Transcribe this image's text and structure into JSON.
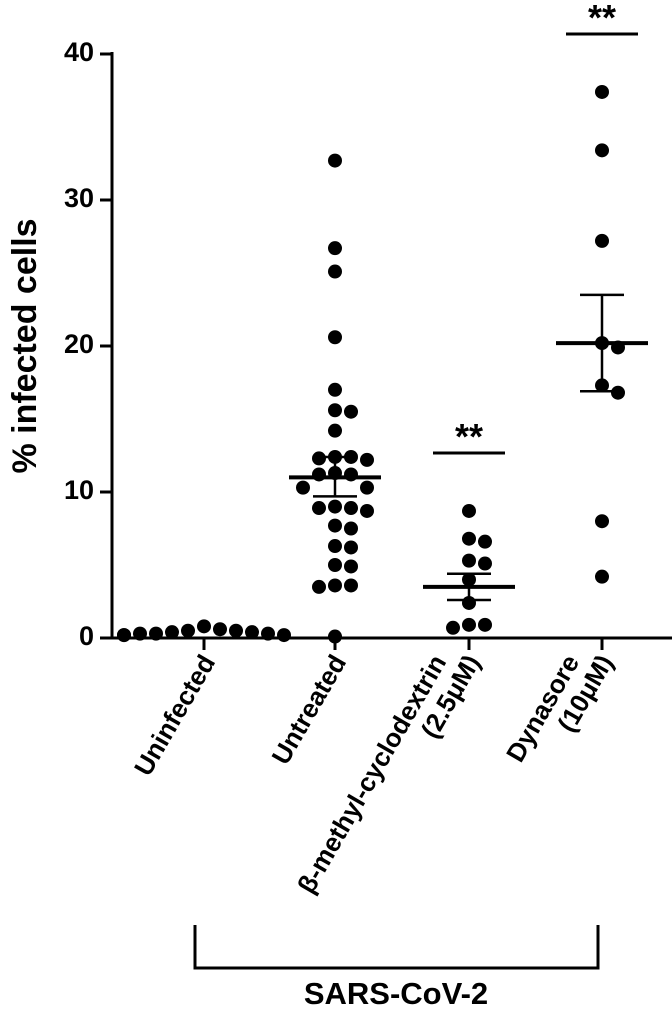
{
  "chart_data": {
    "type": "scatter",
    "ylabel": "% infected cells",
    "ylim": [
      0,
      40
    ],
    "yticks": [
      0,
      10,
      20,
      30,
      40
    ],
    "categories": [
      {
        "lines": [
          "Uninfected"
        ]
      },
      {
        "lines": [
          "Untreated"
        ]
      },
      {
        "lines": [
          "β-methyl-cyclodextrin",
          "(2.5μM)"
        ]
      },
      {
        "lines": [
          "Dynasore",
          "(10μM)"
        ]
      }
    ],
    "groups": [
      {
        "points": [
          0.2,
          0.3,
          0.5,
          0.4,
          0.6,
          0.3,
          0.2,
          0.8,
          0.4,
          0.3,
          0.2,
          0.5
        ],
        "mean": null,
        "sem_low": null,
        "sem_high": null,
        "significance": ""
      },
      {
        "points": [
          32.7,
          26.7,
          25.1,
          20.6,
          17.0,
          15.6,
          15.5,
          14.2,
          12.4,
          12.4,
          12.2,
          12.3,
          11.3,
          11.2,
          11.2,
          10.3,
          10.3,
          9.0,
          8.9,
          8.9,
          8.7,
          7.7,
          7.5,
          6.3,
          6.2,
          5.0,
          4.9,
          3.6,
          3.6,
          3.5,
          0.1
        ],
        "mean": 11.0,
        "sem_low": 9.7,
        "sem_high": 12.4,
        "significance": ""
      },
      {
        "points": [
          8.7,
          6.8,
          6.6,
          5.3,
          5.1,
          4.0,
          2.4,
          0.9,
          0.9,
          0.7
        ],
        "mean": 3.5,
        "sem_low": 2.6,
        "sem_high": 4.4,
        "significance": "**"
      },
      {
        "points": [
          37.4,
          33.4,
          27.2,
          20.2,
          19.9,
          17.3,
          16.8,
          8.0,
          4.2
        ],
        "mean": 20.2,
        "sem_low": 16.9,
        "sem_high": 23.5,
        "significance": "**"
      }
    ],
    "bracket_label": "SARS-CoV-2",
    "grid": false,
    "legend": "none"
  }
}
